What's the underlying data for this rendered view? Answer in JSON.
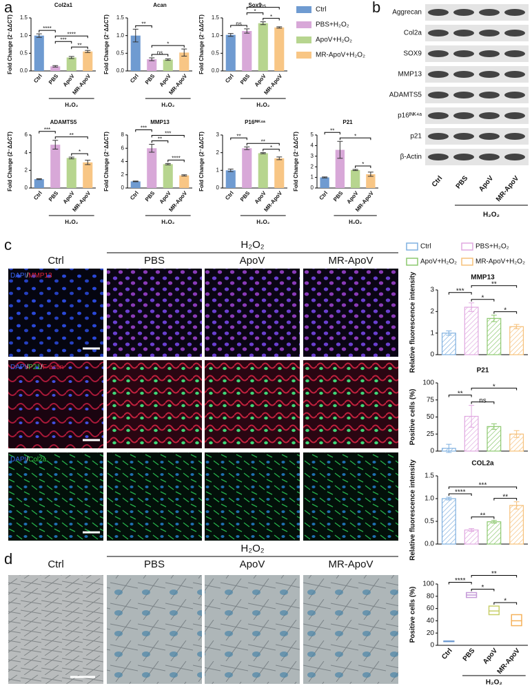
{
  "panel_labels": [
    "a",
    "b",
    "c",
    "d"
  ],
  "legend_a": [
    {
      "name": "Ctrl",
      "color": "#6f9bd1"
    },
    {
      "name": "PBS+H₂O₂",
      "color": "#d8a8d8"
    },
    {
      "name": "ApoV+H₂O₂",
      "color": "#b7d58f"
    },
    {
      "name": "MR-ApoV+H₂O₂",
      "color": "#f8c685"
    }
  ],
  "western_blot": {
    "proteins": [
      "Aggrecan",
      "Col2a",
      "SOX9",
      "MMP13",
      "ADAMTS5",
      "p16ᴵᴺᴷ⁴ᵃ",
      "p21",
      "β-Actin"
    ],
    "lanes": [
      "Ctrl",
      "PBS",
      "ApoV",
      "MR-ApoV"
    ],
    "group_label": "H₂O₂"
  },
  "panel_c": {
    "columns": [
      "Ctrl",
      "PBS",
      "ApoV",
      "MR-ApoV"
    ],
    "group_label": "H₂O₂",
    "row_labels": [
      [
        {
          "text": "DAPI",
          "color": "#3a63e8"
        },
        {
          "text": "/",
          "color": "#ffffff"
        },
        {
          "text": "MMP13",
          "color": "#e8243c"
        }
      ],
      [
        {
          "text": "DAPI",
          "color": "#3a63e8"
        },
        {
          "text": "/",
          "color": "#ffffff"
        },
        {
          "text": "P21",
          "color": "#33cc44"
        },
        {
          "text": "/",
          "color": "#ffffff"
        },
        {
          "text": "F-actin",
          "color": "#e8243c"
        }
      ],
      [
        {
          "text": "DAPI",
          "color": "#3a63e8"
        },
        {
          "text": "/",
          "color": "#ffffff"
        },
        {
          "text": "Col2a",
          "color": "#33cc44"
        }
      ]
    ],
    "legend": [
      {
        "name": "Ctrl",
        "color": "#7fb0e0"
      },
      {
        "name": "PBS+H₂O₂",
        "color": "#e0a8e0"
      },
      {
        "name": "ApoV+H₂O₂",
        "color": "#8cc86e"
      },
      {
        "name": "MR-ApoV+H₂O₂",
        "color": "#f6c079"
      }
    ]
  },
  "panel_d": {
    "columns": [
      "Ctrl",
      "PBS",
      "ApoV",
      "MR-ApoV"
    ],
    "group_label": "H₂O₂"
  },
  "chart_data": [
    {
      "type": "bar",
      "title": "Col2a1",
      "ylabel": "Fold Change (2⁻ΔΔCT)",
      "categories": [
        "Ctrl",
        "PBS",
        "ApoV",
        "MR-ApoV"
      ],
      "values": [
        1.0,
        0.13,
        0.38,
        0.55
      ],
      "errors": [
        0.05,
        0.02,
        0.03,
        0.03
      ],
      "colors": [
        "#6f9bd1",
        "#d8a8d8",
        "#b7d58f",
        "#f8c685"
      ],
      "ylim": [
        0,
        1.5
      ],
      "yticks": [
        {
          "value": 0,
          "label": "0.0"
        },
        0.5,
        {
          "value": 1,
          "label": "1.0"
        },
        1.5
      ],
      "group_label": "H₂O₂",
      "significance": [
        {
          "between": [
            "ApoV",
            "MR-ApoV"
          ],
          "label": "**"
        },
        {
          "between": [
            "PBS",
            "ApoV"
          ],
          "label": "***"
        },
        {
          "between": [
            "PBS",
            "MR-ApoV"
          ],
          "label": "****"
        },
        {
          "between": [
            "Ctrl",
            "PBS"
          ],
          "label": "****"
        }
      ]
    },
    {
      "type": "bar",
      "title": "Acan",
      "ylabel": "Fold Change (2⁻ΔΔCT)",
      "categories": [
        "Ctrl",
        "PBS",
        "ApoV",
        "MR-ApoV"
      ],
      "values": [
        1.0,
        0.33,
        0.32,
        0.52
      ],
      "errors": [
        0.18,
        0.04,
        0.02,
        0.1
      ],
      "colors": [
        "#6f9bd1",
        "#d8a8d8",
        "#b7d58f",
        "#f8c685"
      ],
      "ylim": [
        0,
        1.5
      ],
      "yticks": [
        {
          "value": 0,
          "label": "0.0"
        },
        0.5,
        {
          "value": 1,
          "label": "1.0"
        },
        1.5
      ],
      "group_label": "H₂O₂",
      "significance": [
        {
          "between": [
            "PBS",
            "ApoV"
          ],
          "label": "ns"
        },
        {
          "between": [
            "PBS",
            "MR-ApoV"
          ],
          "label": "*"
        },
        {
          "between": [
            "Ctrl",
            "PBS"
          ],
          "label": "**"
        }
      ]
    },
    {
      "type": "bar",
      "title": "Sox9",
      "ylabel": "Fold Change (2⁻ΔΔCT)",
      "categories": [
        "Ctrl",
        "PBS",
        "ApoV",
        "MR-ApoV"
      ],
      "values": [
        1.02,
        1.13,
        1.35,
        1.23
      ],
      "errors": [
        0.04,
        0.06,
        0.04,
        0.02
      ],
      "colors": [
        "#6f9bd1",
        "#d8a8d8",
        "#b7d58f",
        "#f8c685"
      ],
      "ylim": [
        0,
        1.5
      ],
      "yticks": [
        {
          "value": 0,
          "label": "0.0"
        },
        0.5,
        {
          "value": 1,
          "label": "1.0"
        },
        1.5
      ],
      "group_label": "H₂O₂",
      "significance": [
        {
          "between": [
            "Ctrl",
            "PBS"
          ],
          "label": "ns"
        },
        {
          "between": [
            "ApoV",
            "MR-ApoV"
          ],
          "label": "*"
        },
        {
          "between": [
            "PBS",
            "ApoV"
          ],
          "label": "*"
        },
        {
          "between": [
            "PBS",
            "MR-ApoV"
          ],
          "label": "ns"
        }
      ]
    },
    {
      "type": "bar",
      "title": "ADAMTS5",
      "ylabel": "Fold Change (2⁻ΔΔCT)",
      "categories": [
        "Ctrl",
        "PBS",
        "ApoV",
        "MR-ApoV"
      ],
      "values": [
        1.0,
        4.9,
        3.4,
        2.9
      ],
      "errors": [
        0.05,
        0.5,
        0.1,
        0.25
      ],
      "colors": [
        "#6f9bd1",
        "#d8a8d8",
        "#b7d58f",
        "#f8c685"
      ],
      "ylim": [
        0,
        6
      ],
      "yticks": [
        0,
        2,
        4,
        6
      ],
      "group_label": "H₂O₂",
      "significance": [
        {
          "between": [
            "ApoV",
            "MR-ApoV"
          ],
          "label": "*"
        },
        {
          "between": [
            "PBS",
            "MR-ApoV"
          ],
          "label": "**"
        },
        {
          "between": [
            "Ctrl",
            "PBS"
          ],
          "label": "***"
        }
      ]
    },
    {
      "type": "bar",
      "title": "MMP13",
      "ylabel": "Fold Change (2⁻ΔΔCT)",
      "categories": [
        "Ctrl",
        "PBS",
        "ApoV",
        "MR-ApoV"
      ],
      "values": [
        1.0,
        6.0,
        3.6,
        1.9
      ],
      "errors": [
        0.05,
        0.6,
        0.1,
        0.1
      ],
      "colors": [
        "#6f9bd1",
        "#d8a8d8",
        "#b7d58f",
        "#f8c685"
      ],
      "ylim": [
        0,
        8
      ],
      "yticks": [
        0,
        2,
        4,
        6,
        8
      ],
      "group_label": "H₂O₂",
      "significance": [
        {
          "between": [
            "ApoV",
            "MR-ApoV"
          ],
          "label": "****"
        },
        {
          "between": [
            "PBS",
            "ApoV"
          ],
          "label": "**"
        },
        {
          "between": [
            "PBS",
            "MR-ApoV"
          ],
          "label": "***"
        },
        {
          "between": [
            "Ctrl",
            "PBS"
          ],
          "label": "***"
        }
      ]
    },
    {
      "type": "bar",
      "title": "P16ᴵᴺᴷ⁴ᵃ",
      "ylabel": "Fold Change (2⁻ΔΔCT)",
      "categories": [
        "Ctrl",
        "PBS",
        "ApoV",
        "MR-ApoV"
      ],
      "values": [
        1.0,
        2.25,
        1.97,
        1.68
      ],
      "errors": [
        0.07,
        0.08,
        0.03,
        0.08
      ],
      "colors": [
        "#6f9bd1",
        "#d8a8d8",
        "#b7d58f",
        "#f8c685"
      ],
      "ylim": [
        0,
        3
      ],
      "yticks": [
        0,
        1,
        2,
        3
      ],
      "group_label": "H₂O₂",
      "significance": [
        {
          "between": [
            "ApoV",
            "MR-ApoV"
          ],
          "label": "*"
        },
        {
          "between": [
            "PBS",
            "MR-ApoV"
          ],
          "label": "**"
        },
        {
          "between": [
            "Ctrl",
            "PBS"
          ],
          "label": "**"
        }
      ]
    },
    {
      "type": "bar",
      "title": "P21",
      "ylabel": "Fold Change (2⁻ΔΔCT)",
      "categories": [
        "Ctrl",
        "PBS",
        "ApoV",
        "MR-ApoV"
      ],
      "values": [
        1.0,
        3.6,
        1.7,
        1.3
      ],
      "errors": [
        0.05,
        0.8,
        0.05,
        0.2
      ],
      "colors": [
        "#6f9bd1",
        "#d8a8d8",
        "#b7d58f",
        "#f8c685"
      ],
      "ylim": [
        0,
        5
      ],
      "yticks": [
        0,
        1,
        2,
        3,
        4,
        5
      ],
      "group_label": "H₂O₂",
      "significance": [
        {
          "between": [
            "ApoV",
            "MR-ApoV"
          ],
          "label": "*"
        },
        {
          "between": [
            "PBS",
            "MR-ApoV"
          ],
          "label": "*"
        },
        {
          "between": [
            "Ctrl",
            "PBS"
          ],
          "label": "**"
        }
      ]
    },
    {
      "type": "bar",
      "title": "MMP13",
      "ylabel": "Relative fluorescence intensity",
      "values": [
        1.0,
        2.2,
        1.68,
        1.3
      ],
      "errors": [
        0.1,
        0.2,
        0.15,
        0.1
      ],
      "colors": [
        "#7fb0e0",
        "#e0a8e0",
        "#8cc86e",
        "#f6c079"
      ],
      "hatched": true,
      "ylim": [
        0,
        3
      ],
      "yticks": [
        0,
        1,
        2,
        3
      ],
      "significance": [
        {
          "between": [
            "ApoV+H₂O₂",
            "MR-ApoV+H₂O₂"
          ],
          "label": "*"
        },
        {
          "between": [
            "PBS+H₂O₂",
            "ApoV+H₂O₂"
          ],
          "label": "*"
        },
        {
          "between": [
            "Ctrl",
            "PBS+H₂O₂"
          ],
          "label": "***"
        },
        {
          "between": [
            "PBS+H₂O₂",
            "MR-ApoV+H₂O₂"
          ],
          "label": "**"
        }
      ]
    },
    {
      "type": "bar",
      "title": "P21",
      "ylabel": "Positive cells (%)",
      "values": [
        4,
        51,
        36,
        25
      ],
      "errors": [
        6,
        16,
        4,
        5
      ],
      "colors": [
        "#7fb0e0",
        "#e0a8e0",
        "#8cc86e",
        "#f6c079"
      ],
      "hatched": true,
      "ylim": [
        0,
        100
      ],
      "yticks": [
        0,
        25,
        50,
        75,
        100
      ],
      "significance": [
        {
          "between": [
            "PBS+H₂O₂",
            "ApoV+H₂O₂"
          ],
          "label": "ns"
        },
        {
          "between": [
            "Ctrl",
            "PBS+H₂O₂"
          ],
          "label": "**"
        },
        {
          "between": [
            "PBS+H₂O₂",
            "MR-ApoV+H₂O₂"
          ],
          "label": "*"
        }
      ]
    },
    {
      "type": "bar",
      "title": "COL2a",
      "ylabel": "Relative fluorescence intensity",
      "values": [
        1.0,
        0.31,
        0.49,
        0.85
      ],
      "errors": [
        0.03,
        0.03,
        0.03,
        0.08
      ],
      "colors": [
        "#7fb0e0",
        "#e0a8e0",
        "#8cc86e",
        "#f6c079"
      ],
      "hatched": true,
      "ylim": [
        0,
        1.5
      ],
      "yticks": [
        {
          "value": 0,
          "label": "0.0"
        },
        0.5,
        {
          "value": 1,
          "label": "1.0"
        },
        1.5
      ],
      "significance": [
        {
          "between": [
            "PBS+H₂O₂",
            "ApoV+H₂O₂"
          ],
          "label": "**"
        },
        {
          "between": [
            "ApoV+H₂O₂",
            "MR-ApoV+H₂O₂"
          ],
          "label": "**"
        },
        {
          "between": [
            "Ctrl",
            "PBS+H₂O₂"
          ],
          "label": "****"
        },
        {
          "between": [
            "Ctrl",
            "MR-ApoV+H₂O₂"
          ],
          "label": "***"
        }
      ]
    },
    {
      "type": "box",
      "ylabel": "Positive cells (%)",
      "categories": [
        "Ctrl",
        "PBS",
        "ApoV",
        "MR-ApoV"
      ],
      "low": [
        6,
        78,
        50,
        32
      ],
      "high": [
        7,
        86,
        64,
        50
      ],
      "mean": [
        6.5,
        82,
        56,
        40
      ],
      "colors": [
        "#6f9bd1",
        "#c59ad8",
        "#c8cf6a",
        "#f5b15a"
      ],
      "ylim": [
        0,
        100
      ],
      "yticks": [
        0,
        20,
        40,
        60,
        80,
        100
      ],
      "group_label": "H₂O₂",
      "significance": [
        {
          "between": [
            "ApoV",
            "MR-ApoV"
          ],
          "label": "*"
        },
        {
          "between": [
            "PBS",
            "ApoV"
          ],
          "label": "*"
        },
        {
          "between": [
            "Ctrl",
            "PBS"
          ],
          "label": "****"
        },
        {
          "between": [
            "PBS",
            "MR-ApoV"
          ],
          "label": "**"
        }
      ]
    }
  ]
}
